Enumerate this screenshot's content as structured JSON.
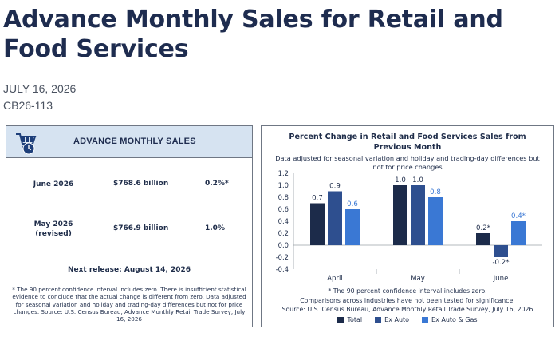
{
  "header": {
    "title": "Advance Monthly Sales for Retail and Food Services",
    "date": "JULY 16, 2026",
    "release_id": "CB26-113"
  },
  "sales_card": {
    "heading": "ADVANCE MONTHLY SALES",
    "rows": [
      {
        "label": "June 2026",
        "value": "$768.6 billion",
        "change": "0.2%*"
      },
      {
        "label": "May 2026\n(revised)",
        "value": "$766.9 billion",
        "change": "1.0%"
      }
    ],
    "next_release": "Next release: August 14, 2026",
    "footnote": "* The 90 percent confidence interval includes zero. There is insufficient statistical evidence to conclude that the actual change is different from zero. Data adjusted for seasonal variation and holiday and trading-day differences but not for price changes. Source: U.S. Census Bureau, Advance Monthly Retail Trade Survey, July 16, 2026"
  },
  "chart_card": {
    "note1": "* The 90 percent confidence interval includes zero.",
    "note2": "Comparisons across industries have not been tested for significance.",
    "source": "Source: U.S. Census Bureau, Advance Monthly Retail Trade Survey, July 16, 2026"
  },
  "colors": {
    "total": "#1c2b4a",
    "ex_auto": "#2e4f8f",
    "ex_auto_gas": "#3a78d4",
    "card_header": "#d6e3f1"
  },
  "chart_data": {
    "type": "bar",
    "title": "Percent Change in Retail and Food Services Sales from Previous Month",
    "subtitle": "Data adjusted for seasonal variation and holiday and trading-day differences but not for price changes",
    "categories": [
      "April",
      "May",
      "June"
    ],
    "series": [
      {
        "name": "Total",
        "values": [
          0.7,
          1.0,
          0.2
        ],
        "labels": [
          "0.7",
          "1.0",
          "0.2*"
        ]
      },
      {
        "name": "Ex Auto",
        "values": [
          0.9,
          1.0,
          -0.2
        ],
        "labels": [
          "0.9",
          "1.0",
          "-0.2*"
        ]
      },
      {
        "name": "Ex Auto & Gas",
        "values": [
          0.6,
          0.8,
          0.4
        ],
        "labels": [
          "0.6",
          "0.8",
          "0.4*"
        ]
      }
    ],
    "yticks": [
      "1.2",
      "1.0",
      "0.8",
      "0.6",
      "0.4",
      "0.2",
      "0.0",
      "-0.2",
      "-0.4"
    ],
    "ylim": [
      -0.4,
      1.2
    ],
    "grid": false,
    "legend_position": "bottom"
  }
}
